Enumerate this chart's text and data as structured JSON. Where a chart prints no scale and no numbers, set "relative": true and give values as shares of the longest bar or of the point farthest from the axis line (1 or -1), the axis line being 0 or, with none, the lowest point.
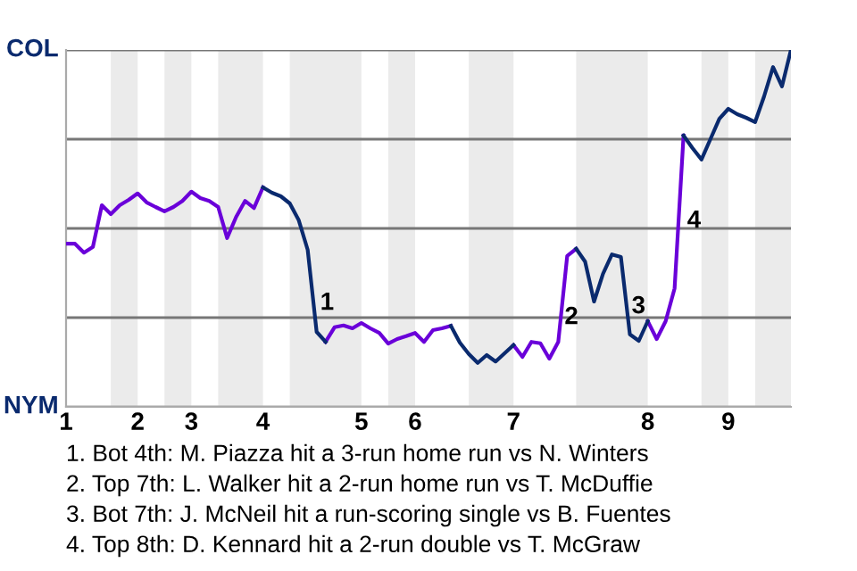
{
  "chart_data": {
    "type": "line",
    "relative": true,
    "categories": [
      "1",
      null,
      null,
      null,
      null,
      null,
      null,
      null,
      "2",
      null,
      null,
      null,
      null,
      null,
      "3",
      null,
      null,
      null,
      null,
      null,
      null,
      null,
      "4",
      null,
      null,
      null,
      null,
      null,
      null,
      null,
      null,
      null,
      null,
      "5",
      null,
      null,
      null,
      null,
      null,
      "6",
      null,
      null,
      null,
      null,
      null,
      null,
      null,
      null,
      null,
      null,
      "7",
      null,
      null,
      null,
      null,
      null,
      null,
      null,
      null,
      null,
      null,
      null,
      null,
      null,
      null,
      "8",
      null,
      null,
      null,
      null,
      null,
      null,
      null,
      null,
      "9",
      null,
      null,
      null,
      null,
      null,
      null,
      null
    ],
    "series": [
      {
        "color": "#6a00d9",
        "values": [
          0.457,
          0.457,
          0.432,
          0.448,
          0.565,
          0.54,
          0.565,
          0.58,
          0.598,
          0.573,
          0.56,
          0.548,
          0.56,
          0.577,
          0.603,
          0.585,
          0.577,
          0.56,
          0.473,
          0.532,
          0.577,
          0.557,
          0.615,
          null,
          null,
          null,
          null,
          null,
          null,
          0.182,
          0.223,
          0.228,
          0.22,
          0.235,
          0.22,
          0.207,
          0.177,
          0.19,
          0.198,
          0.207,
          0.182,
          0.215,
          0.22,
          0.227,
          null,
          null,
          null,
          null,
          null,
          null,
          0.173,
          0.14,
          0.182,
          0.178,
          0.135,
          0.182,
          0.423,
          0.443,
          null,
          null,
          null,
          null,
          null,
          null,
          null,
          0.24,
          0.19,
          0.24,
          0.332,
          0.76,
          null,
          null,
          null,
          null,
          null,
          null,
          null,
          null,
          null,
          null,
          null,
          null
        ]
      },
      {
        "color": "#0a2a6e",
        "values": [
          null,
          null,
          null,
          null,
          null,
          null,
          null,
          null,
          null,
          null,
          null,
          null,
          null,
          null,
          null,
          null,
          null,
          null,
          null,
          null,
          null,
          null,
          0.615,
          0.6,
          0.59,
          0.57,
          0.523,
          0.44,
          0.21,
          0.182,
          null,
          null,
          null,
          null,
          null,
          null,
          null,
          null,
          null,
          null,
          null,
          null,
          null,
          0.227,
          0.18,
          0.148,
          0.123,
          0.145,
          0.127,
          0.15,
          0.173,
          null,
          null,
          null,
          null,
          null,
          null,
          0.443,
          0.407,
          0.295,
          0.373,
          0.427,
          0.42,
          0.203,
          0.185,
          0.24,
          null,
          null,
          null,
          0.76,
          0.725,
          0.693,
          0.75,
          0.807,
          0.835,
          0.82,
          0.81,
          0.798,
          0.87,
          0.952,
          0.898,
          1
        ]
      }
    ],
    "ref_lines": [
      {
        "axis": "y",
        "value": 0,
        "label": "NYM",
        "color": "#aaaaaa"
      },
      {
        "axis": "y",
        "value": 0.25,
        "color": "#777777"
      },
      {
        "axis": "y",
        "value": 0.5,
        "color": "#777777"
      },
      {
        "axis": "y",
        "value": 0.75,
        "color": "#777777"
      },
      {
        "axis": "y",
        "value": 1,
        "label": "COL",
        "color": "#777777"
      }
    ],
    "annotations": [
      "1",
      "2",
      "3",
      "4",
      "1. Bot 4th: M. Piazza hit a 3-run home run vs N. Winters",
      "2. Top 7th: L. Walker hit a 2-run home run vs T. McDuffie",
      "3. Bot 7th: J. McNeil hit a run-scoring single vs B. Fuentes",
      "4. Top 8th: D. Kennard hit a 2-run double vs T. McGraw"
    ]
  }
}
